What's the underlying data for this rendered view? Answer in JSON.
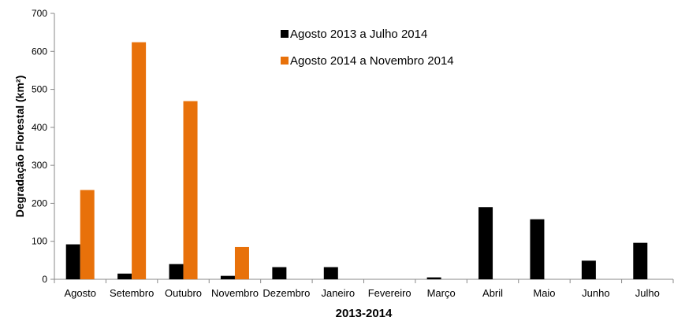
{
  "chart_data": {
    "type": "bar",
    "xlabel": "2013-2014",
    "ylabel": "Degradação Florestal (km²)",
    "ylim": [
      0,
      700
    ],
    "yticks": [
      0,
      100,
      200,
      300,
      400,
      500,
      600,
      700
    ],
    "grid": false,
    "legend_position": "top-center",
    "categories": [
      "Agosto",
      "Setembro",
      "Outubro",
      "Novembro",
      "Dezembro",
      "Janeiro",
      "Fevereiro",
      "Março",
      "Abril",
      "Maio",
      "Junho",
      "Julho"
    ],
    "series": [
      {
        "name": "Agosto 2013 a Julho 2014",
        "color": "#000000",
        "values": [
          92,
          15,
          40,
          9,
          32,
          32,
          0,
          5,
          190,
          158,
          49,
          96
        ]
      },
      {
        "name": "Agosto 2014 a Novembro 2014",
        "color": "#e8710a",
        "values": [
          235,
          624,
          469,
          85,
          null,
          null,
          null,
          null,
          null,
          null,
          null,
          null
        ]
      }
    ]
  }
}
